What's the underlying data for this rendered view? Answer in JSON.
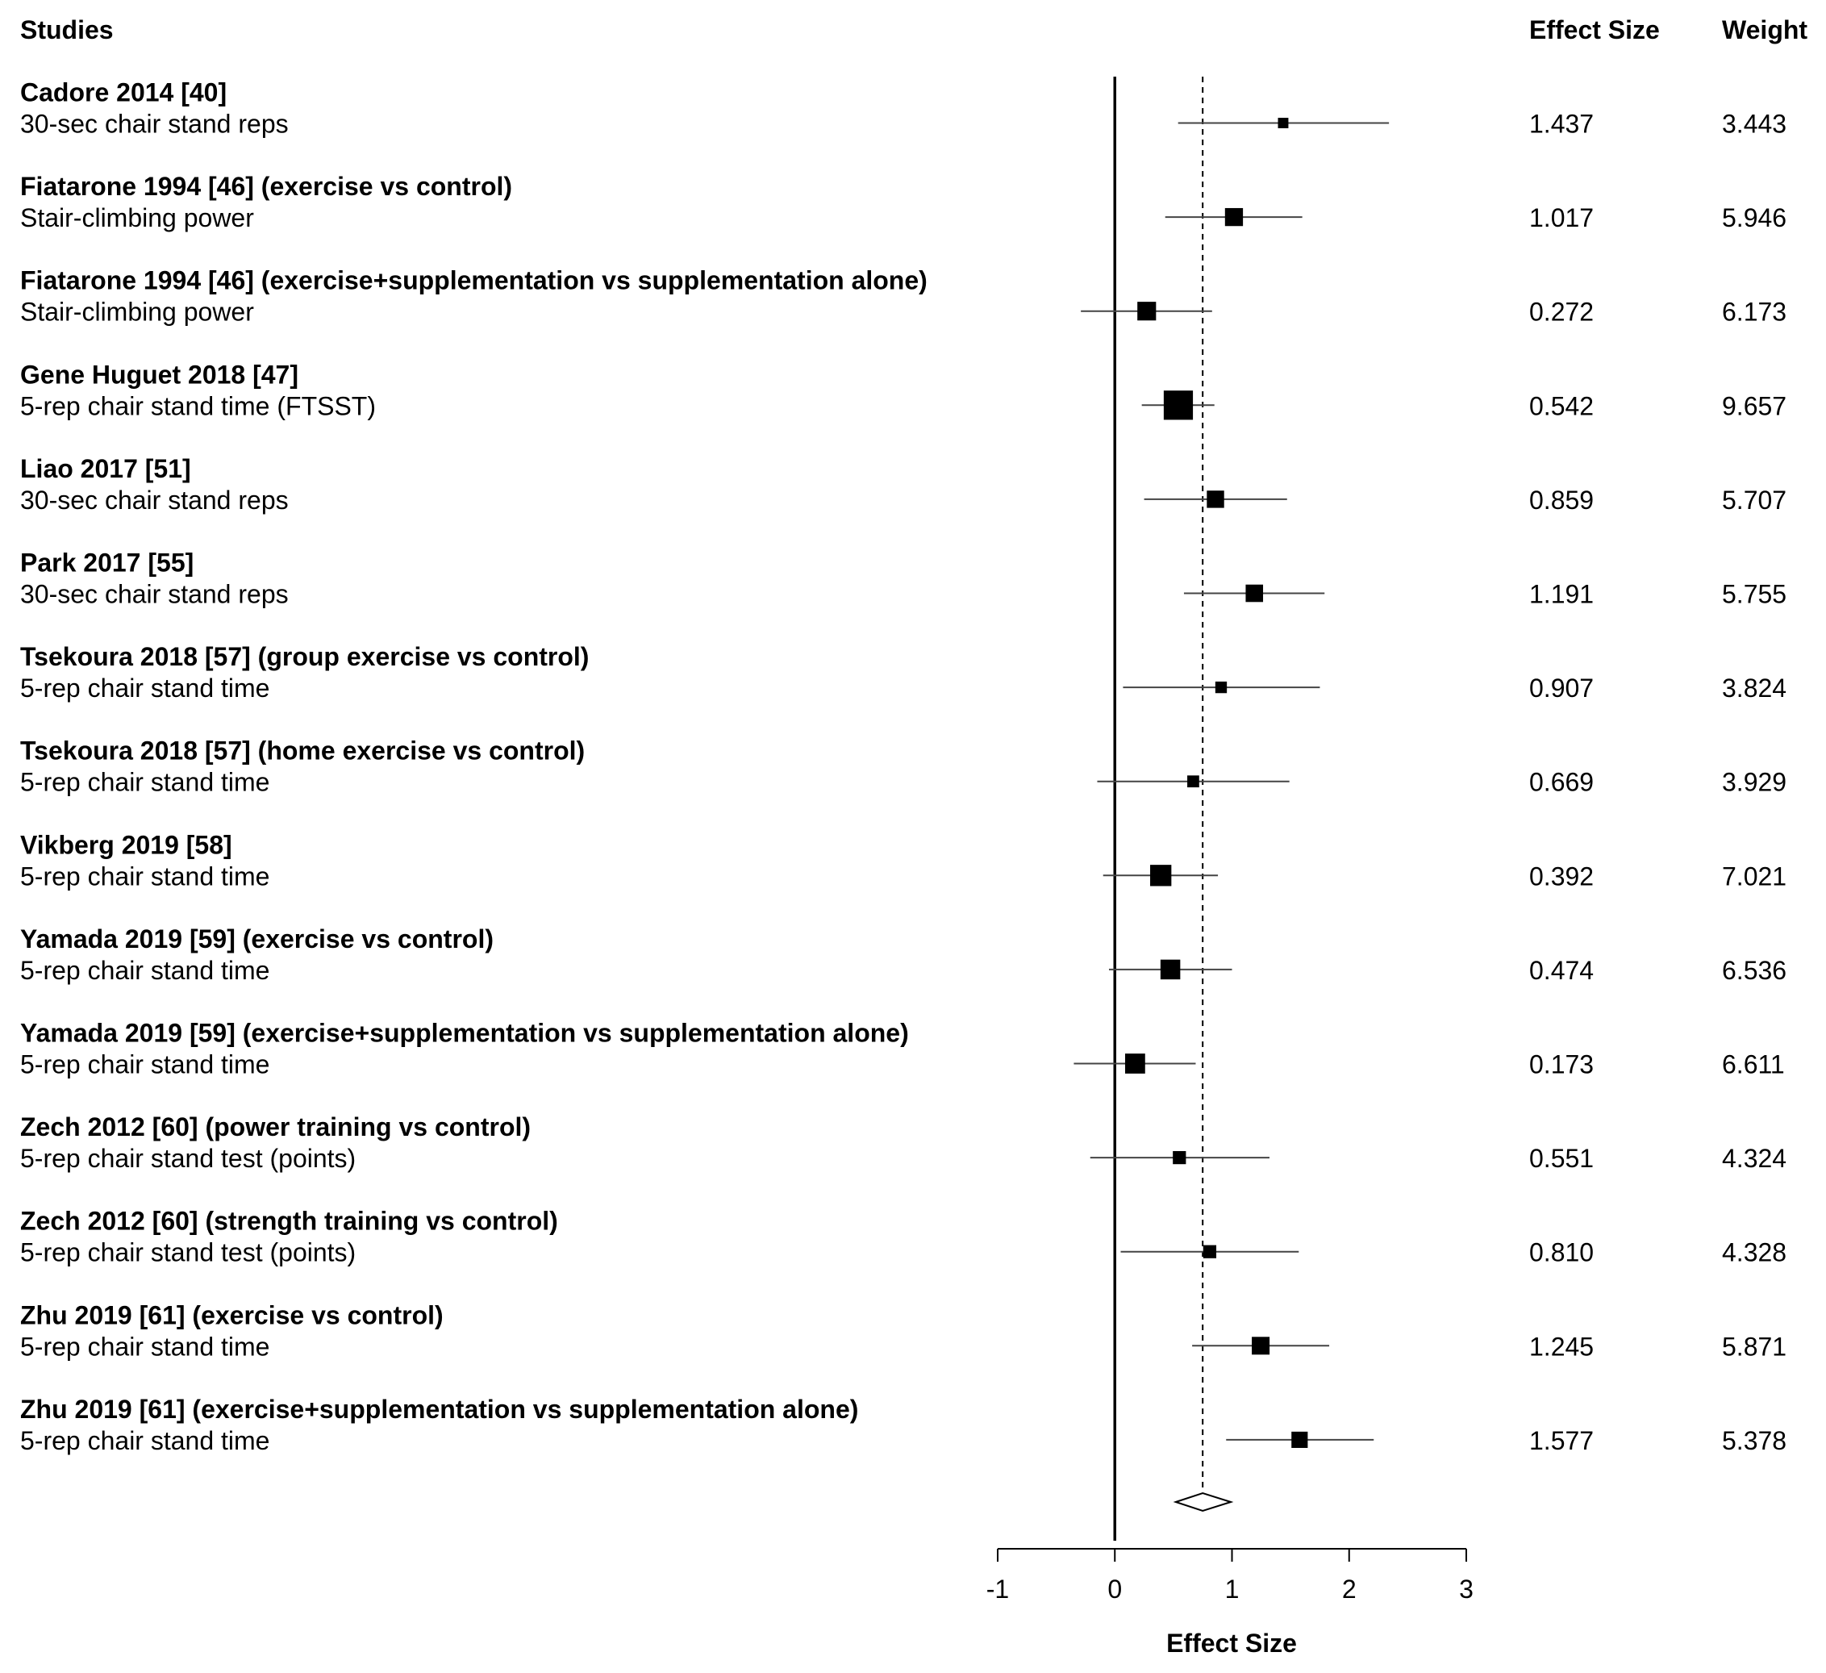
{
  "chart_data": {
    "type": "forest",
    "headers": {
      "studies": "Studies",
      "effect": "Effect Size",
      "weight": "Weight"
    },
    "xlabel": "Effect Size",
    "xlim": [
      -1,
      3
    ],
    "xticks": [
      "-1",
      "0",
      "1",
      "2",
      "3"
    ],
    "reference_line": 0,
    "pooled_estimate": 0.75,
    "pooled_ci": [
      0.52,
      0.99
    ],
    "studies": [
      {
        "name": "Cadore 2014 [40]",
        "outcome": "30-sec chair stand reps",
        "effect": 1.437,
        "ci_low": 0.54,
        "ci_high": 2.34,
        "effect_label": "1.437",
        "weight": 3.443,
        "weight_label": "3.443"
      },
      {
        "name": "Fiatarone 1994 [46] (exercise vs control)",
        "outcome": "Stair-climbing power",
        "effect": 1.017,
        "ci_low": 0.43,
        "ci_high": 1.6,
        "effect_label": "1.017",
        "weight": 5.946,
        "weight_label": "5.946"
      },
      {
        "name": "Fiatarone 1994 [46] (exercise+supplementation vs supplementation alone)",
        "outcome": "Stair-climbing power",
        "effect": 0.272,
        "ci_low": -0.29,
        "ci_high": 0.83,
        "effect_label": "0.272",
        "weight": 6.173,
        "weight_label": "6.173"
      },
      {
        "name": "Gene Huguet 2018 [47]",
        "outcome": "5-rep chair stand time (FTSST)",
        "effect": 0.542,
        "ci_low": 0.23,
        "ci_high": 0.85,
        "effect_label": "0.542",
        "weight": 9.657,
        "weight_label": "9.657"
      },
      {
        "name": "Liao 2017 [51]",
        "outcome": "30-sec chair stand reps",
        "effect": 0.859,
        "ci_low": 0.25,
        "ci_high": 1.47,
        "effect_label": "0.859",
        "weight": 5.707,
        "weight_label": "5.707"
      },
      {
        "name": "Park 2017 [55]",
        "outcome": "30-sec chair stand reps",
        "effect": 1.191,
        "ci_low": 0.59,
        "ci_high": 1.79,
        "effect_label": "1.191",
        "weight": 5.755,
        "weight_label": "5.755"
      },
      {
        "name": "Tsekoura 2018 [57] (group exercise vs control)",
        "outcome": "5-rep chair stand time",
        "effect": 0.907,
        "ci_low": 0.07,
        "ci_high": 1.75,
        "effect_label": "0.907",
        "weight": 3.824,
        "weight_label": "3.824"
      },
      {
        "name": "Tsekoura 2018 [57] (home exercise vs control)",
        "outcome": "5-rep chair stand time",
        "effect": 0.669,
        "ci_low": -0.15,
        "ci_high": 1.49,
        "effect_label": "0.669",
        "weight": 3.929,
        "weight_label": "3.929"
      },
      {
        "name": "Vikberg 2019 [58]",
        "outcome": "5-rep chair stand time",
        "effect": 0.392,
        "ci_low": -0.1,
        "ci_high": 0.88,
        "effect_label": "0.392",
        "weight": 7.021,
        "weight_label": "7.021"
      },
      {
        "name": "Yamada 2019 [59] (exercise vs control)",
        "outcome": "5-rep chair stand time",
        "effect": 0.474,
        "ci_low": -0.05,
        "ci_high": 1.0,
        "effect_label": "0.474",
        "weight": 6.536,
        "weight_label": "6.536"
      },
      {
        "name": "Yamada 2019 [59] (exercise+supplementation vs supplementation alone)",
        "outcome": "5-rep chair stand time",
        "effect": 0.173,
        "ci_low": -0.35,
        "ci_high": 0.69,
        "effect_label": "0.173",
        "weight": 6.611,
        "weight_label": "6.611"
      },
      {
        "name": "Zech 2012 [60] (power training vs control)",
        "outcome": "5-rep chair stand test (points)",
        "effect": 0.551,
        "ci_low": -0.21,
        "ci_high": 1.32,
        "effect_label": "0.551",
        "weight": 4.324,
        "weight_label": "4.324"
      },
      {
        "name": "Zech 2012 [60] (strength training vs control)",
        "outcome": "5-rep chair stand test (points)",
        "effect": 0.81,
        "ci_low": 0.05,
        "ci_high": 1.57,
        "effect_label": "0.810",
        "weight": 4.328,
        "weight_label": "4.328"
      },
      {
        "name": "Zhu 2019 [61] (exercise vs control)",
        "outcome": "5-rep chair stand time",
        "effect": 1.245,
        "ci_low": 0.66,
        "ci_high": 1.83,
        "effect_label": "1.245",
        "weight": 5.871,
        "weight_label": "5.871"
      },
      {
        "name": "Zhu 2019 [61] (exercise+supplementation vs supplementation alone)",
        "outcome": "5-rep chair stand time",
        "effect": 1.577,
        "ci_low": 0.95,
        "ci_high": 2.21,
        "effect_label": "1.577",
        "weight": 5.378,
        "weight_label": "5.378"
      }
    ]
  }
}
